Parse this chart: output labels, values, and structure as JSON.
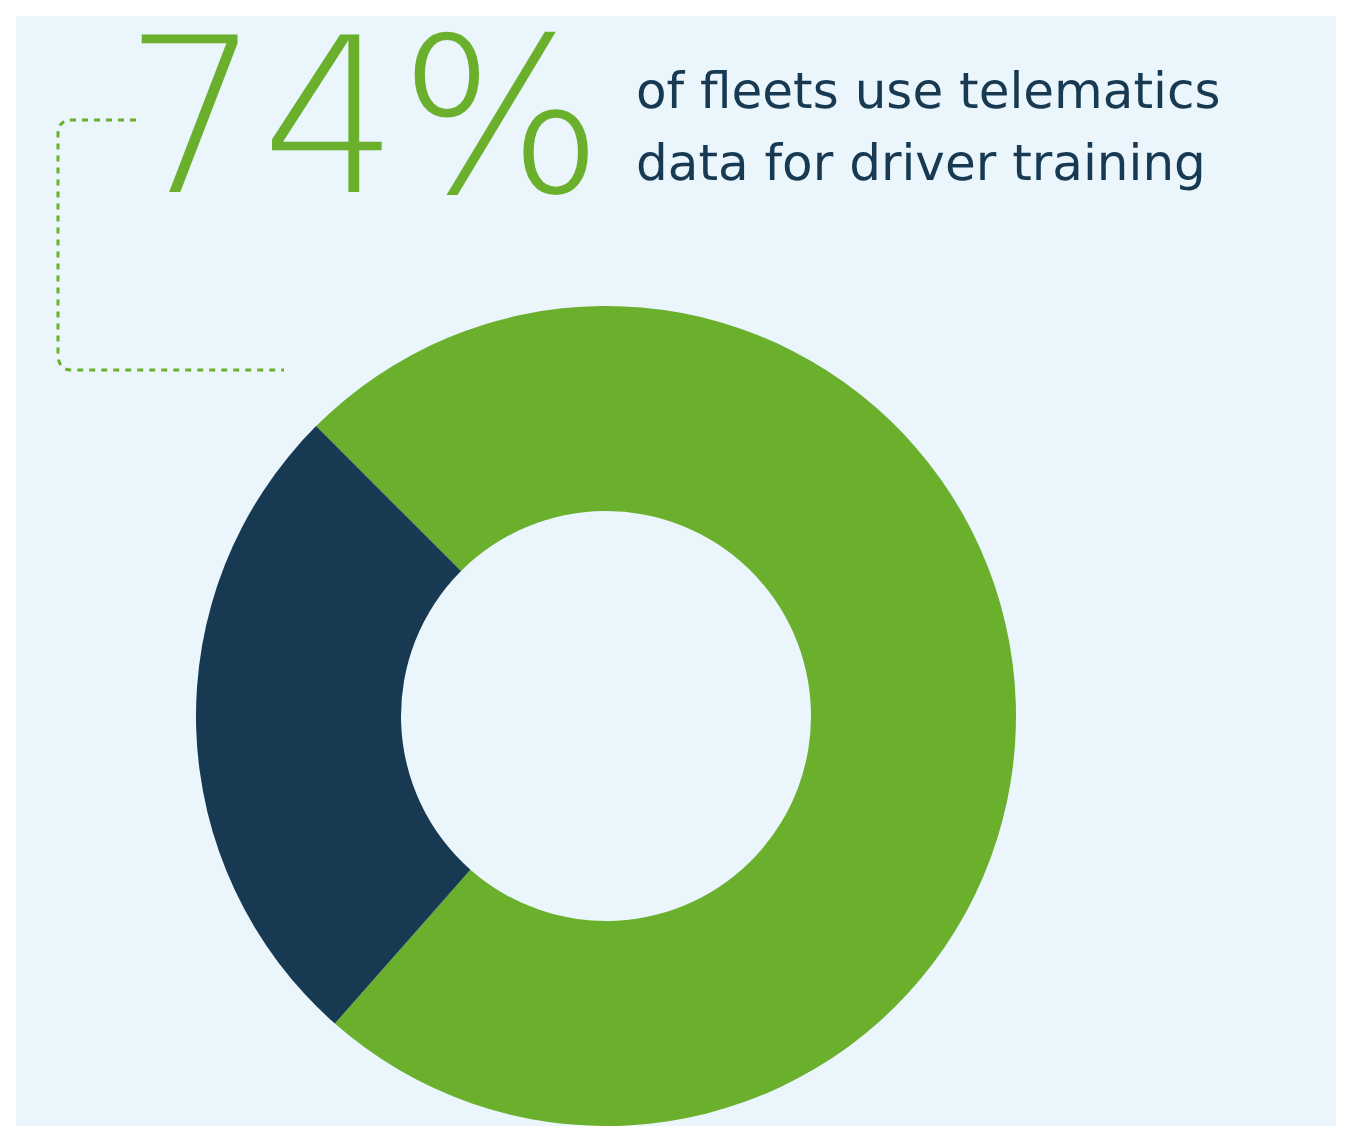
{
  "chart_data": {
    "type": "donut",
    "title": "of fleets use telematics data for driver training",
    "categories": [
      null,
      null
    ],
    "values": [
      74,
      26
    ],
    "colors": [
      "#6ab02c",
      "#173a52"
    ],
    "value_labels": [
      "74%",
      null
    ],
    "legend": false
  }
}
